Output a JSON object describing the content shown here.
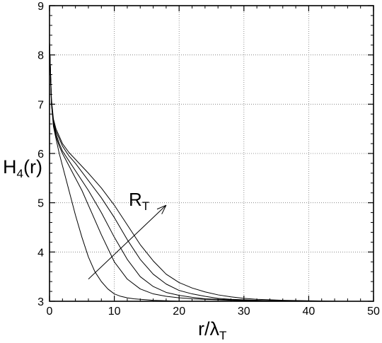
{
  "chart_data": {
    "type": "line",
    "title": "",
    "xlabel": {
      "main": "r/λ",
      "sub": "T"
    },
    "ylabel": {
      "main": "H",
      "sub": "4",
      "rest": "(r)"
    },
    "xlim": [
      0,
      50
    ],
    "ylim": [
      3,
      9
    ],
    "xticks": [
      0,
      10,
      20,
      30,
      40,
      50
    ],
    "yticks": [
      3,
      4,
      5,
      6,
      7,
      8,
      9
    ],
    "grid": true,
    "grid_style": "dotted",
    "line_color": "#000000",
    "annotation": {
      "label": {
        "main": "R",
        "sub": "T"
      },
      "arrow_from": [
        6,
        3.45
      ],
      "arrow_to": [
        18,
        4.95
      ]
    },
    "series": [
      {
        "x": [
          0,
          0.3,
          0.6,
          1,
          1.5,
          2,
          3,
          4,
          5,
          6,
          7,
          8,
          9,
          10,
          11,
          12,
          13,
          14,
          15,
          16,
          18,
          20,
          25,
          30,
          35,
          40,
          45,
          50
        ],
        "y": [
          8.25,
          7.0,
          6.55,
          6.3,
          6.0,
          5.75,
          5.25,
          4.75,
          4.3,
          3.9,
          3.6,
          3.4,
          3.25,
          3.15,
          3.1,
          3.07,
          3.05,
          3.04,
          3.03,
          3.02,
          3.01,
          3.0,
          3.0,
          3.0,
          3.0,
          3.0,
          3.0,
          3.0
        ]
      },
      {
        "x": [
          0,
          0.3,
          0.6,
          1,
          1.5,
          2,
          3,
          4,
          5,
          6,
          8,
          10,
          12,
          14,
          16,
          18,
          20,
          22,
          24,
          26,
          28,
          30,
          35,
          40,
          45,
          50
        ],
        "y": [
          8.25,
          7.0,
          6.6,
          6.35,
          6.15,
          6.0,
          5.75,
          5.5,
          5.25,
          4.95,
          4.35,
          3.8,
          3.45,
          3.25,
          3.15,
          3.1,
          3.07,
          3.05,
          3.04,
          3.03,
          3.02,
          3.01,
          3.0,
          3.0,
          3.0,
          3.0
        ]
      },
      {
        "x": [
          0,
          0.3,
          0.6,
          1,
          1.5,
          2,
          3,
          4,
          6,
          8,
          10,
          12,
          14,
          16,
          18,
          20,
          22,
          24,
          26,
          28,
          30,
          35,
          40,
          45,
          50
        ],
        "y": [
          8.25,
          7.05,
          6.65,
          6.4,
          6.2,
          6.05,
          5.85,
          5.65,
          5.25,
          4.8,
          4.3,
          3.85,
          3.5,
          3.3,
          3.18,
          3.12,
          3.08,
          3.05,
          3.04,
          3.03,
          3.02,
          3.01,
          3.0,
          3.0,
          3.0
        ]
      },
      {
        "x": [
          0,
          0.3,
          0.6,
          1,
          1.5,
          2,
          3,
          4,
          6,
          8,
          10,
          12,
          14,
          16,
          18,
          20,
          22,
          24,
          26,
          28,
          30,
          32,
          35,
          40,
          45,
          50
        ],
        "y": [
          8.25,
          7.05,
          6.65,
          6.45,
          6.3,
          6.15,
          5.95,
          5.8,
          5.45,
          5.1,
          4.7,
          4.25,
          3.85,
          3.55,
          3.35,
          3.22,
          3.15,
          3.1,
          3.06,
          3.04,
          3.03,
          3.02,
          3.01,
          3.0,
          3.0,
          3.0
        ]
      },
      {
        "x": [
          0,
          0.3,
          0.6,
          1,
          1.5,
          2,
          3,
          4,
          6,
          8,
          10,
          12,
          14,
          16,
          18,
          20,
          22,
          24,
          26,
          28,
          30,
          32,
          34,
          36,
          40,
          45,
          50
        ],
        "y": [
          8.25,
          7.1,
          6.7,
          6.5,
          6.35,
          6.2,
          6.02,
          5.88,
          5.6,
          5.3,
          4.95,
          4.55,
          4.15,
          3.82,
          3.55,
          3.38,
          3.27,
          3.19,
          3.13,
          3.09,
          3.06,
          3.04,
          3.03,
          3.02,
          3.01,
          3.0,
          3.0
        ]
      }
    ]
  }
}
